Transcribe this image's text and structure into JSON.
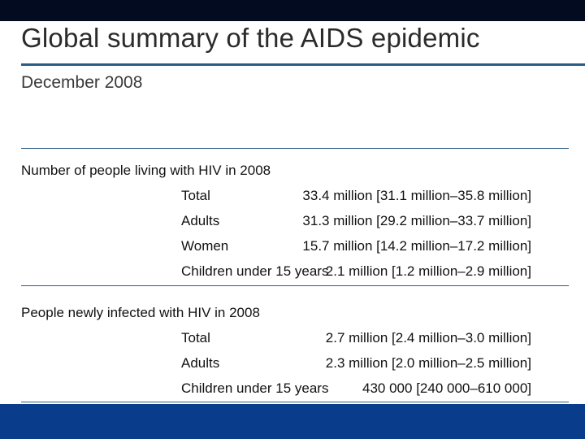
{
  "slide": {
    "title": "Global summary of the AIDS epidemic",
    "subtitle": "December 2008",
    "colors": {
      "top_bar": "#020b20",
      "accent_rule": "#2a5d86",
      "bottom_bar": "#0a3c8c"
    }
  },
  "sections": [
    {
      "heading": "Number of people living with HIV in 2008",
      "rows": [
        {
          "label": "Total",
          "value": "33.4 million [31.1 million–35.8 million]"
        },
        {
          "label": "Adults",
          "value": "31.3 million [29.2 million–33.7 million]"
        },
        {
          "label": "Women",
          "value": "15.7 million [14.2 million–17.2 million]"
        },
        {
          "label": "Children under 15 years",
          "value": "2.1 million [1.2 million–2.9 million]"
        }
      ]
    },
    {
      "heading": "People newly infected with HIV in 2008",
      "rows": [
        {
          "label": "Total",
          "value": "2.7 million [2.4 million–3.0 million]"
        },
        {
          "label": "Adults",
          "value": "2.3 million [2.0 million–2.5 million]"
        },
        {
          "label": "Children under 15 years",
          "value": "430 000 [240 000–610 000]"
        }
      ]
    }
  ]
}
